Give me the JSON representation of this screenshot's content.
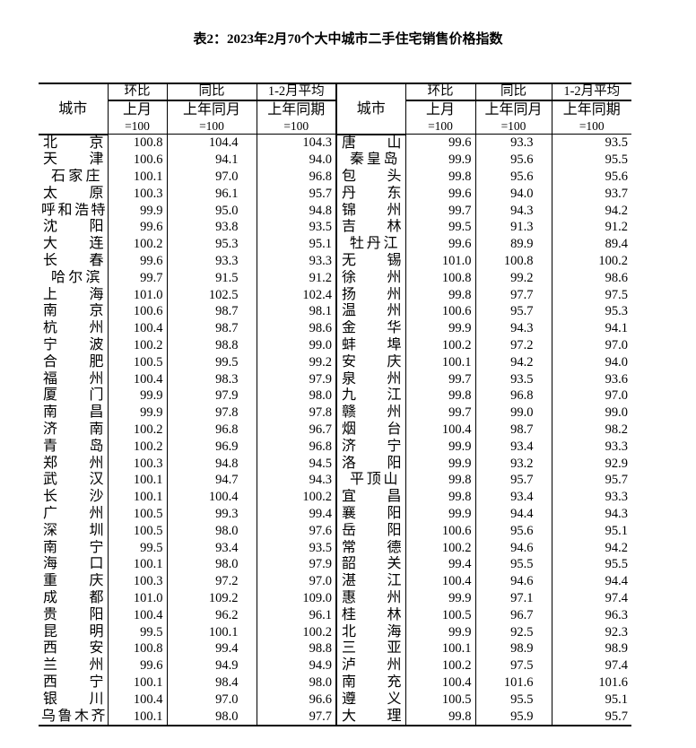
{
  "title": "表2：2023年2月70个大中城市二手住宅销售价格指数",
  "header": {
    "city": "城市",
    "mom": "环比",
    "mom_base": "上月",
    "mom_eq": "=100",
    "yoy": "同比",
    "yoy_base": "上年同月",
    "yoy_eq": "=100",
    "avg": "1-2月平均",
    "avg_base": "上年同期",
    "avg_eq": "=100"
  },
  "left": [
    [
      "北京",
      "100.8",
      "104.4",
      "104.3"
    ],
    [
      "天津",
      "100.6",
      "94.1",
      "94.0"
    ],
    [
      "石家庄",
      "100.1",
      "97.0",
      "96.8"
    ],
    [
      "太原",
      "100.3",
      "96.1",
      "95.7"
    ],
    [
      "呼和浩特",
      "99.9",
      "95.0",
      "94.8"
    ],
    [
      "沈阳",
      "99.6",
      "93.8",
      "93.5"
    ],
    [
      "大连",
      "100.2",
      "95.3",
      "95.1"
    ],
    [
      "长春",
      "99.6",
      "93.3",
      "93.3"
    ],
    [
      "哈尔滨",
      "99.7",
      "91.5",
      "91.2"
    ],
    [
      "上海",
      "101.0",
      "102.5",
      "102.4"
    ],
    [
      "南京",
      "100.6",
      "98.7",
      "98.1"
    ],
    [
      "杭州",
      "100.4",
      "98.7",
      "98.6"
    ],
    [
      "宁波",
      "100.2",
      "98.8",
      "99.0"
    ],
    [
      "合肥",
      "100.5",
      "99.5",
      "99.2"
    ],
    [
      "福州",
      "100.4",
      "98.3",
      "97.9"
    ],
    [
      "厦门",
      "99.9",
      "97.9",
      "98.0"
    ],
    [
      "南昌",
      "99.9",
      "97.8",
      "97.8"
    ],
    [
      "济南",
      "100.2",
      "96.8",
      "96.7"
    ],
    [
      "青岛",
      "100.2",
      "96.9",
      "96.8"
    ],
    [
      "郑州",
      "100.3",
      "94.8",
      "94.5"
    ],
    [
      "武汉",
      "100.1",
      "94.7",
      "94.3"
    ],
    [
      "长沙",
      "100.1",
      "100.4",
      "100.2"
    ],
    [
      "广州",
      "100.5",
      "99.3",
      "99.4"
    ],
    [
      "深圳",
      "100.5",
      "98.0",
      "97.6"
    ],
    [
      "南宁",
      "99.5",
      "93.4",
      "93.5"
    ],
    [
      "海口",
      "100.1",
      "98.0",
      "97.9"
    ],
    [
      "重庆",
      "100.3",
      "97.2",
      "97.0"
    ],
    [
      "成都",
      "101.0",
      "109.2",
      "109.0"
    ],
    [
      "贵阳",
      "100.4",
      "96.2",
      "96.1"
    ],
    [
      "昆明",
      "99.5",
      "100.1",
      "100.2"
    ],
    [
      "西安",
      "100.8",
      "99.4",
      "98.8"
    ],
    [
      "兰州",
      "99.6",
      "94.9",
      "94.9"
    ],
    [
      "西宁",
      "100.1",
      "98.4",
      "98.0"
    ],
    [
      "银川",
      "100.4",
      "97.0",
      "96.6"
    ],
    [
      "乌鲁木齐",
      "100.1",
      "98.0",
      "97.7"
    ]
  ],
  "right": [
    [
      "唐山",
      "99.6",
      "93.3",
      "93.5"
    ],
    [
      "秦皇岛",
      "99.9",
      "95.6",
      "95.5"
    ],
    [
      "包头",
      "99.8",
      "95.6",
      "95.6"
    ],
    [
      "丹东",
      "99.6",
      "94.0",
      "93.7"
    ],
    [
      "锦州",
      "99.7",
      "94.3",
      "94.2"
    ],
    [
      "吉林",
      "99.5",
      "91.3",
      "91.2"
    ],
    [
      "牡丹江",
      "99.6",
      "89.9",
      "89.4"
    ],
    [
      "无锡",
      "101.0",
      "100.8",
      "100.2"
    ],
    [
      "徐州",
      "100.8",
      "99.2",
      "98.6"
    ],
    [
      "扬州",
      "99.8",
      "97.7",
      "97.5"
    ],
    [
      "温州",
      "100.6",
      "95.7",
      "95.3"
    ],
    [
      "金华",
      "99.9",
      "94.3",
      "94.1"
    ],
    [
      "蚌埠",
      "100.2",
      "97.2",
      "97.0"
    ],
    [
      "安庆",
      "100.1",
      "94.2",
      "94.0"
    ],
    [
      "泉州",
      "99.7",
      "93.5",
      "93.6"
    ],
    [
      "九江",
      "99.8",
      "96.8",
      "97.0"
    ],
    [
      "赣州",
      "99.7",
      "99.0",
      "99.0"
    ],
    [
      "烟台",
      "100.4",
      "98.7",
      "98.2"
    ],
    [
      "济宁",
      "99.9",
      "93.4",
      "93.3"
    ],
    [
      "洛阳",
      "99.9",
      "93.2",
      "92.9"
    ],
    [
      "平顶山",
      "99.8",
      "95.7",
      "95.7"
    ],
    [
      "宜昌",
      "99.8",
      "93.4",
      "93.3"
    ],
    [
      "襄阳",
      "99.9",
      "94.4",
      "94.3"
    ],
    [
      "岳阳",
      "100.6",
      "95.6",
      "95.1"
    ],
    [
      "常德",
      "100.2",
      "94.6",
      "94.2"
    ],
    [
      "韶关",
      "99.4",
      "95.5",
      "95.5"
    ],
    [
      "湛江",
      "100.4",
      "94.6",
      "94.4"
    ],
    [
      "惠州",
      "99.9",
      "97.1",
      "97.4"
    ],
    [
      "桂林",
      "100.5",
      "96.7",
      "96.3"
    ],
    [
      "北海",
      "99.9",
      "92.5",
      "92.3"
    ],
    [
      "三亚",
      "100.1",
      "98.9",
      "98.9"
    ],
    [
      "泸州",
      "100.2",
      "97.5",
      "97.4"
    ],
    [
      "南充",
      "100.4",
      "101.6",
      "101.6"
    ],
    [
      "遵义",
      "100.5",
      "95.5",
      "95.1"
    ],
    [
      "大理",
      "99.8",
      "95.9",
      "95.7"
    ]
  ]
}
